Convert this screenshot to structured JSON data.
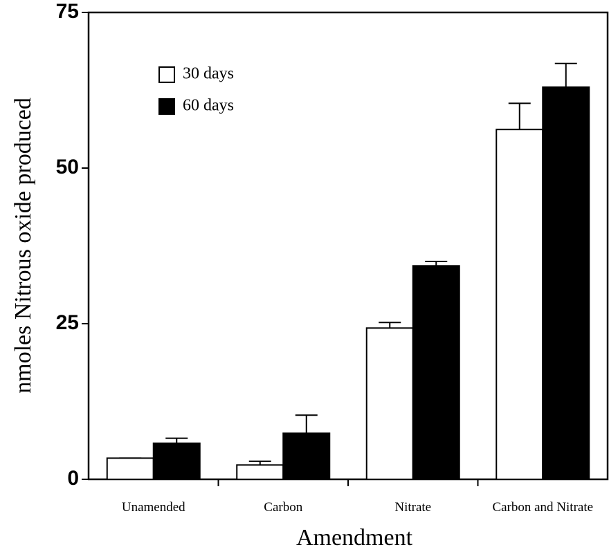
{
  "chart_data": {
    "type": "bar",
    "xlabel": "Amendment",
    "ylabel": "nmoles Nitrous oxide produced",
    "categories": [
      "Unamended",
      "Carbon",
      "Nitrate",
      "Carbon and Nitrate"
    ],
    "series": [
      {
        "name": "30 days",
        "color": "#ffffff",
        "values": [
          3.4,
          2.3,
          24.3,
          56.2
        ],
        "errors": [
          0,
          0.6,
          0.9,
          4.2
        ]
      },
      {
        "name": "60 days",
        "color": "#000000",
        "values": [
          5.8,
          7.4,
          34.3,
          63.0
        ],
        "errors": [
          0.8,
          2.9,
          0.7,
          3.8
        ]
      }
    ],
    "ylim": [
      0,
      75
    ],
    "yticks": [
      0,
      25,
      50,
      75
    ],
    "legend": "upper left"
  }
}
